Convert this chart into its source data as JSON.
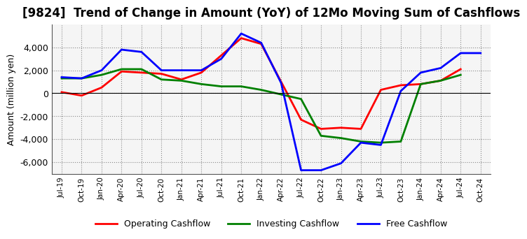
{
  "title": "[9824]  Trend of Change in Amount (YoY) of 12Mo Moving Sum of Cashflows",
  "ylabel": "Amount (million yen)",
  "x_labels": [
    "Jul-19",
    "Oct-19",
    "Jan-20",
    "Apr-20",
    "Jul-20",
    "Oct-20",
    "Jan-21",
    "Apr-21",
    "Jul-21",
    "Oct-21",
    "Jan-22",
    "Apr-22",
    "Jul-22",
    "Oct-22",
    "Jan-23",
    "Apr-23",
    "Jul-23",
    "Oct-23",
    "Jan-24",
    "Apr-24",
    "Jul-24",
    "Oct-24"
  ],
  "operating": [
    100,
    -200,
    500,
    1900,
    1800,
    1700,
    1200,
    1800,
    3300,
    4800,
    4300,
    1000,
    -2300,
    -3100,
    -3000,
    -3100,
    300,
    700,
    800,
    1100,
    2100,
    null
  ],
  "investing": [
    1300,
    1300,
    1600,
    2100,
    2100,
    1200,
    1100,
    800,
    600,
    600,
    300,
    -100,
    -500,
    -3700,
    -3900,
    -4200,
    -4300,
    -4200,
    800,
    1100,
    1600,
    null
  ],
  "free": [
    1400,
    1300,
    2000,
    3800,
    3600,
    2000,
    2000,
    2000,
    3000,
    5200,
    4400,
    900,
    -6700,
    -6700,
    -6100,
    -4300,
    -4500,
    200,
    1800,
    2200,
    3500,
    3500
  ],
  "ylim": [
    -7000,
    6000
  ],
  "yticks": [
    -6000,
    -4000,
    -2000,
    0,
    2000,
    4000
  ],
  "operating_color": "#ff0000",
  "investing_color": "#008000",
  "free_color": "#0000ff",
  "background_color": "#ffffff",
  "plot_bg_color": "#f5f5f5",
  "grid_color": "#888888",
  "title_fontsize": 12,
  "legend_labels": [
    "Operating Cashflow",
    "Investing Cashflow",
    "Free Cashflow"
  ]
}
